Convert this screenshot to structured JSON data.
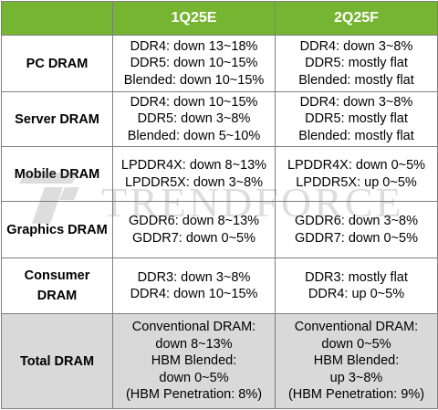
{
  "header": {
    "corner": "",
    "col1": "1Q25E",
    "col2": "2Q25F"
  },
  "rows": [
    {
      "label": [
        "PC DRAM"
      ],
      "q1": [
        "DDR4: down 13~18%",
        "DDR5: down 10~15%",
        "Blended: down 10~15%"
      ],
      "q2": [
        "DDR4: down 3~8%",
        "DDR5: mostly flat",
        "Blended: mostly flat"
      ]
    },
    {
      "label": [
        "Server DRAM"
      ],
      "q1": [
        "DDR4: down 10~15%",
        "DDR5: down 3~8%",
        "Blended: down 5~10%"
      ],
      "q2": [
        "DDR4: down 3~8%",
        "DDR5: mostly flat",
        "Blended: mostly flat"
      ]
    },
    {
      "label": [
        "Mobile DRAM"
      ],
      "q1": [
        "LPDDR4X: down 8~13%",
        "LPDDR5X: down 3~8%"
      ],
      "q2": [
        "LPDDR4X: down 0~5%",
        "LPDDR5X: up 0~5%"
      ]
    },
    {
      "label": [
        "Graphics DRAM"
      ],
      "q1": [
        "GDDR6: down 8~13%",
        "GDDR7: down 0~5%"
      ],
      "q2": [
        "GDDR6: down 3~8%",
        "GDDR7: down 0~5%"
      ]
    },
    {
      "label": [
        "Consumer",
        "DRAM"
      ],
      "q1": [
        "DDR3: down 3~8%",
        "DDR4: down 10~15%"
      ],
      "q2": [
        "DDR3: mostly flat",
        "DDR4: up 0~5%"
      ]
    },
    {
      "label": [
        "Total DRAM"
      ],
      "q1": [
        "Conventional DRAM:",
        "down 8~13%",
        "HBM Blended:",
        "down 0~5%",
        "(HBM Penetration: 8%)"
      ],
      "q2": [
        "Conventional DRAM:",
        "down 0~5%",
        "HBM Blended:",
        "up 3~8%",
        "(HBM Penetration: 9%)"
      ]
    }
  ],
  "watermark": {
    "text": "TRENDFORCE",
    "icon": "trendforce-logo-icon",
    "color": "#6a6a6a"
  },
  "colors": {
    "header_bg": "#76b531",
    "header_text": "#ffffff",
    "total_row_bg": "#d9d9d9",
    "border": "#7f7f7f"
  }
}
